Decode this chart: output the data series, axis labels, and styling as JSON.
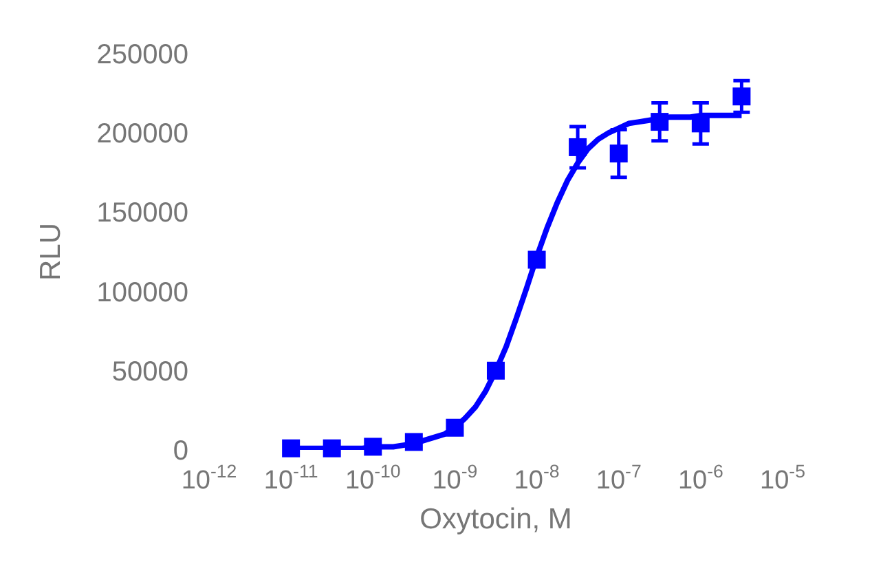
{
  "chart_data": {
    "type": "scatter",
    "xlabel": "Oxytocin, M",
    "ylabel": "RLU",
    "log": "x",
    "xlim": [
      1e-12,
      1e-05
    ],
    "xticks": [
      {
        "value": 1e-12,
        "label": "10$^{-12}$"
      },
      {
        "value": 1e-11,
        "label": "10$^{-11}$"
      },
      {
        "value": 1e-10,
        "label": "10$^{-10}$"
      },
      {
        "value": 1e-09,
        "label": "10$^{-9}$"
      },
      {
        "value": 1e-08,
        "label": "10$^{-8}$"
      },
      {
        "value": 1e-07,
        "label": "10$^{-7}$"
      },
      {
        "value": 1e-06,
        "label": "10$^{-6}$"
      },
      {
        "value": 1e-05,
        "label": "10$^{-5}$"
      }
    ],
    "ylim": [
      0,
      250000
    ],
    "yticks": [
      0,
      50000,
      100000,
      150000,
      200000,
      250000
    ],
    "series": [
      {
        "type": "line",
        "color": "#0000ff",
        "line_style": "solid",
        "x": [
          1e-11,
          1.334e-11,
          1.778e-11,
          2.371e-11,
          3.162e-11,
          4.217e-11,
          5.623e-11,
          7.499e-11,
          1e-10,
          1.334e-10,
          1.778e-10,
          2.371e-10,
          3.162e-10,
          4.217e-10,
          5.623e-10,
          7.499e-10,
          1e-09,
          1.334e-09,
          1.778e-09,
          2.371e-09,
          3.162e-09,
          4.217e-09,
          5.623e-09,
          7.499e-09,
          1e-08,
          1.334e-08,
          1.778e-08,
          2.371e-08,
          3.162e-08,
          4.217e-08,
          5.623e-08,
          7.499e-08,
          1e-07,
          1.334e-07,
          1.778e-07,
          2.371e-07,
          3.162e-07,
          4.217e-07,
          5.623e-07,
          7.499e-07,
          1e-06,
          1.334e-06,
          1.778e-06,
          2.371e-06,
          3.162e-06
        ],
        "values": [
          1000,
          1000,
          1000,
          1000,
          1000,
          1000,
          1000,
          1000,
          2000,
          2000,
          2000,
          3000,
          4000,
          6000,
          8000,
          10000,
          14000,
          20000,
          27000,
          37000,
          50000,
          65000,
          83000,
          102000,
          122000,
          140000,
          156000,
          170000,
          181000,
          190000,
          196000,
          200000,
          203000,
          206000,
          207000,
          208000,
          209000,
          210000,
          210000,
          210000,
          211000,
          211000,
          211000,
          211000,
          211000
        ]
      },
      {
        "color": "#0000ff",
        "marker": "square",
        "x": [
          1e-11,
          3.16e-11,
          1e-10,
          3.16e-10,
          1e-09,
          3.16e-09,
          1e-08,
          3.16e-08,
          1e-07,
          3.16e-07,
          1e-06,
          3.16e-06
        ],
        "values": [
          1000,
          1000,
          2000,
          5000,
          14000,
          50000,
          120000,
          191000,
          187000,
          207000,
          206000,
          223000
        ],
        "errors": [
          null,
          null,
          null,
          null,
          null,
          null,
          null,
          13000,
          15000,
          12000,
          13000,
          10000
        ]
      }
    ]
  }
}
